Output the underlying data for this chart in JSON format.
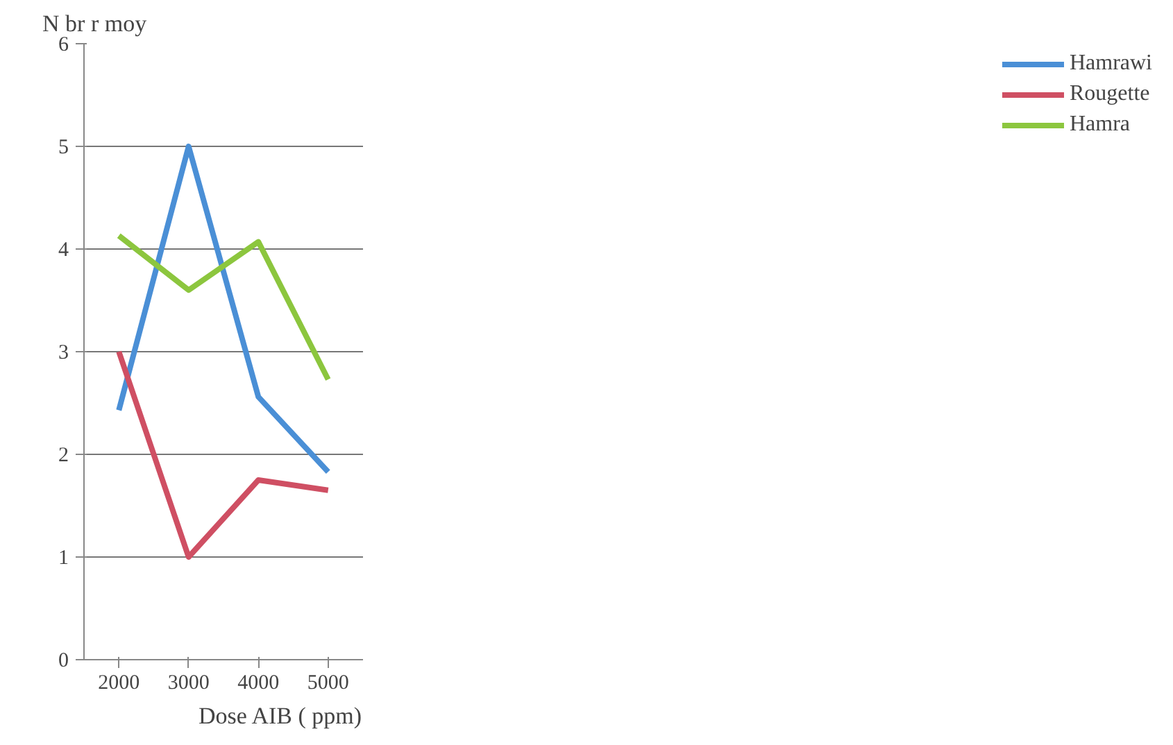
{
  "chart_data": {
    "type": "line",
    "ylabel": "N br r moy",
    "xlabel": "Dose AIB ( ppm)",
    "categories": [
      "2000",
      "3000",
      "4000",
      "5000"
    ],
    "series": [
      {
        "name": "Hamrawi",
        "color": "#4a8fd6",
        "values": [
          2.43,
          5.0,
          2.56,
          1.83
        ]
      },
      {
        "name": "Rougette",
        "color": "#cf4f63",
        "values": [
          3.0,
          1.0,
          1.75,
          1.65
        ]
      },
      {
        "name": "Hamra",
        "color": "#8cc63e",
        "values": [
          4.13,
          3.6,
          4.07,
          2.73
        ]
      }
    ],
    "ylim": [
      0,
      6
    ],
    "yticks": [
      0,
      1,
      2,
      3,
      4,
      5,
      6
    ],
    "grid": "y",
    "legend": "right",
    "marker": "none",
    "line_style": "solid"
  }
}
